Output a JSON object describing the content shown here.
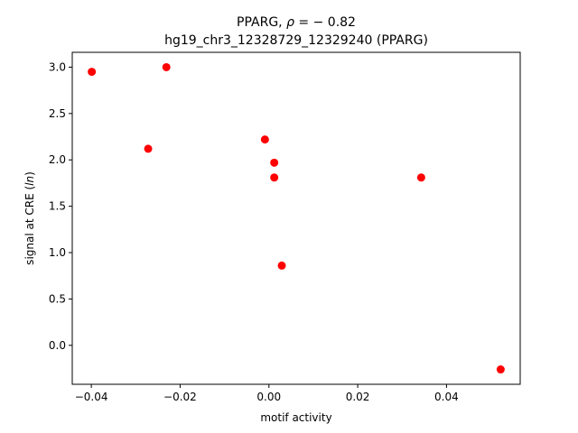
{
  "chart_data": {
    "type": "scatter",
    "title_line1_prefix": "PPARG, ",
    "title_rho_symbol": "ρ",
    "title_line1_suffix": " = − 0.82",
    "title_line2": "hg19_chr3_12328729_12329240 (PPARG)",
    "xlabel": "motif activity",
    "ylabel_prefix": "signal at CRE (",
    "ylabel_italic": "ln",
    "ylabel_suffix": ")",
    "xlim": [
      -0.0443,
      0.0566
    ],
    "ylim": [
      -0.42,
      3.16
    ],
    "x_ticks": [
      -0.04,
      -0.02,
      0.0,
      0.02,
      0.04
    ],
    "x_tick_labels": [
      "−0.04",
      "−0.02",
      "0.00",
      "0.02",
      "0.04"
    ],
    "y_ticks": [
      0.0,
      0.5,
      1.0,
      1.5,
      2.0,
      2.5,
      3.0
    ],
    "y_tick_labels": [
      "0.0",
      "0.5",
      "1.0",
      "1.5",
      "2.0",
      "2.5",
      "3.0"
    ],
    "grid": false,
    "legend": "none",
    "marker_color": "#ff0000",
    "points": [
      {
        "x": -0.0399,
        "y": 2.95
      },
      {
        "x": -0.0231,
        "y": 3.0
      },
      {
        "x": -0.0272,
        "y": 2.12
      },
      {
        "x": -0.0009,
        "y": 2.22
      },
      {
        "x": 0.0012,
        "y": 1.97
      },
      {
        "x": 0.0012,
        "y": 1.81
      },
      {
        "x": 0.0343,
        "y": 1.81
      },
      {
        "x": 0.0029,
        "y": 0.86
      },
      {
        "x": 0.0522,
        "y": -0.26
      }
    ]
  }
}
